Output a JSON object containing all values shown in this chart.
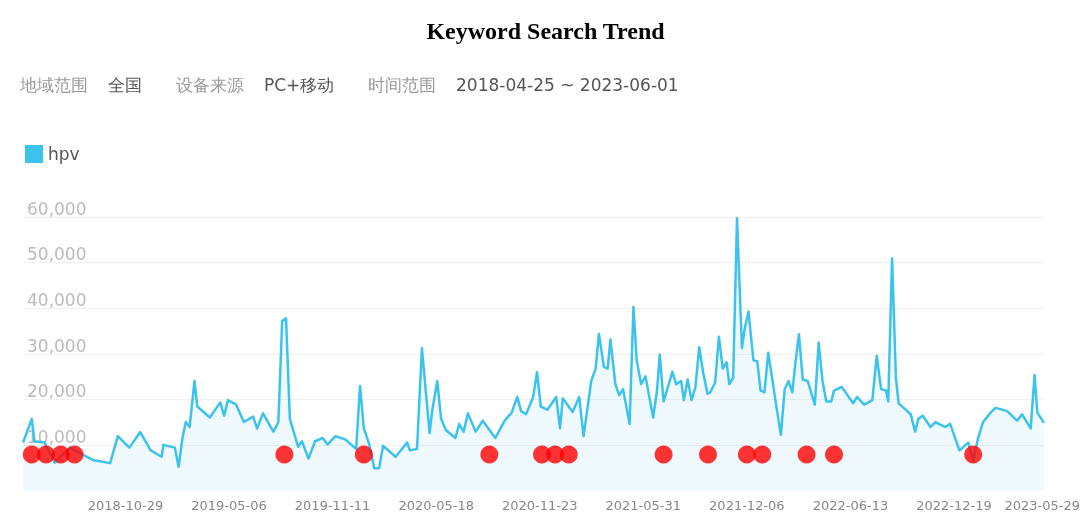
{
  "chart_data": {
    "type": "area",
    "title": "Keyword Search Trend",
    "annotations": [
      "地域范围",
      "全国",
      "设备来源",
      "PC+移动",
      "时间范围",
      "2018-04-25 ~ 2023-06-01"
    ],
    "xlim": [
      "2018-04-25",
      "2023-06-01"
    ],
    "xticks": [
      "2018-10-29",
      "2019-05-06",
      "2019-11-11",
      "2020-05-18",
      "2020-11-23",
      "2021-05-31",
      "2021-12-06",
      "2022-06-13",
      "2022-12-19",
      "2023-05-29"
    ],
    "ylim": [
      0,
      60000
    ],
    "yticks": [
      {
        "value": 10000,
        "label": "10,000"
      },
      {
        "value": 20000,
        "label": "20,000"
      },
      {
        "value": 30000,
        "label": "30,000"
      },
      {
        "value": 40000,
        "label": "40,000"
      },
      {
        "value": 50000,
        "label": "50,000"
      },
      {
        "value": 60000,
        "label": "60,000"
      }
    ],
    "grid": "y",
    "legend": "top left",
    "marker": "none",
    "line_style": "solid",
    "series": [
      {
        "name": "hpv",
        "color": "#3bc3ee",
        "x": [
          "2018-04-25",
          "2018-05-11",
          "2018-05-16",
          "2018-06-03",
          "2018-06-22",
          "2018-07-19",
          "2018-08-30",
          "2018-10-01",
          "2018-10-15",
          "2018-11-05",
          "2018-11-25",
          "2018-12-14",
          "2019-01-03",
          "2019-01-06",
          "2019-01-27",
          "2019-02-03",
          "2019-02-10",
          "2019-02-16",
          "2019-02-23",
          "2019-03-04",
          "2019-03-09",
          "2019-04-01",
          "2019-04-13",
          "2019-04-20",
          "2019-04-27",
          "2019-05-04",
          "2019-05-19",
          "2019-06-02",
          "2019-06-19",
          "2019-06-26",
          "2019-07-07",
          "2019-07-26",
          "2019-08-04",
          "2019-08-11",
          "2019-08-18",
          "2019-08-25",
          "2019-09-09",
          "2019-09-16",
          "2019-09-28",
          "2019-10-10",
          "2019-10-24",
          "2019-11-02",
          "2019-11-16",
          "2019-12-04",
          "2019-12-24",
          "2019-12-31",
          "2020-01-07",
          "2020-01-17",
          "2020-01-26",
          "2020-02-04",
          "2020-02-11",
          "2020-03-05",
          "2020-03-26",
          "2020-03-31",
          "2020-04-13",
          "2020-04-22",
          "2020-04-30",
          "2020-05-06",
          "2020-05-11",
          "2020-05-20",
          "2020-05-27",
          "2020-06-05",
          "2020-06-22",
          "2020-06-29",
          "2020-07-07",
          "2020-07-15",
          "2020-07-29",
          "2020-08-11",
          "2020-09-03",
          "2020-09-20",
          "2020-10-03",
          "2020-10-13",
          "2020-10-20",
          "2020-10-29",
          "2020-11-11",
          "2020-11-18",
          "2020-11-25",
          "2020-12-07",
          "2020-12-23",
          "2020-12-30",
          "2021-01-04",
          "2021-01-22",
          "2021-02-03",
          "2021-02-11",
          "2021-02-25",
          "2021-03-05",
          "2021-03-11",
          "2021-03-20",
          "2021-03-27",
          "2021-04-01",
          "2021-04-10",
          "2021-04-17",
          "2021-04-24",
          "2021-05-06",
          "2021-05-13",
          "2021-05-19",
          "2021-05-27",
          "2021-06-04",
          "2021-06-18",
          "2021-06-25",
          "2021-06-30",
          "2021-07-07",
          "2021-07-23",
          "2021-07-30",
          "2021-08-08",
          "2021-08-13",
          "2021-08-20",
          "2021-08-27",
          "2021-09-03",
          "2021-09-10",
          "2021-09-17",
          "2021-09-25",
          "2021-09-30",
          "2021-10-09",
          "2021-10-16",
          "2021-10-23",
          "2021-10-30",
          "2021-11-04",
          "2021-11-11",
          "2021-11-18",
          "2021-11-27",
          "2021-12-02",
          "2021-12-09",
          "2021-12-18",
          "2021-12-25",
          "2021-12-31",
          "2022-01-07",
          "2022-01-14",
          "2022-01-21",
          "2022-01-28",
          "2022-02-06",
          "2022-02-13",
          "2022-02-20",
          "2022-02-27",
          "2022-03-04",
          "2022-03-11",
          "2022-03-18",
          "2022-03-27",
          "2022-04-09",
          "2022-04-16",
          "2022-04-23",
          "2022-04-30",
          "2022-05-09",
          "2022-05-14",
          "2022-05-28",
          "2022-06-18",
          "2022-06-25",
          "2022-07-08",
          "2022-07-23",
          "2022-07-31",
          "2022-08-08",
          "2022-08-17",
          "2022-08-21",
          "2022-08-28",
          "2022-09-04",
          "2022-09-09",
          "2022-10-01",
          "2022-10-09",
          "2022-10-15",
          "2022-10-23",
          "2022-11-06",
          "2022-11-15",
          "2022-12-03",
          "2022-12-12",
          "2022-12-29",
          "2023-01-14",
          "2023-01-23",
          "2023-02-01",
          "2023-02-10",
          "2023-02-24",
          "2023-03-05",
          "2023-03-26",
          "2023-04-13",
          "2023-04-22",
          "2023-05-08",
          "2023-05-15",
          "2023-05-20",
          "2023-06-01"
        ],
        "values": [
          10600,
          15800,
          10900,
          10600,
          6200,
          9500,
          6800,
          6100,
          12000,
          9500,
          12900,
          8900,
          7500,
          10100,
          9500,
          5300,
          11600,
          15100,
          14000,
          24100,
          18500,
          16100,
          18200,
          19400,
          16500,
          19900,
          18900,
          15100,
          16300,
          13700,
          17000,
          13000,
          15100,
          37200,
          37800,
          15800,
          9700,
          10900,
          7100,
          10900,
          11600,
          10200,
          12000,
          11300,
          9200,
          23000,
          13700,
          10200,
          5000,
          5000,
          9900,
          7500,
          10600,
          8900,
          9200,
          31300,
          20600,
          12700,
          17800,
          24100,
          15800,
          13300,
          11600,
          14700,
          13000,
          17000,
          13000,
          15400,
          11600,
          15400,
          17200,
          20600,
          17500,
          16800,
          20600,
          26000,
          18500,
          17800,
          20600,
          13700,
          20300,
          17300,
          20600,
          12000,
          24100,
          26800,
          34400,
          27200,
          26800,
          33200,
          23400,
          21000,
          22300,
          14700,
          40300,
          28600,
          23400,
          25100,
          16100,
          22000,
          29900,
          19600,
          26100,
          23400,
          24100,
          19900,
          24400,
          19900,
          22700,
          31500,
          26100,
          21300,
          21600,
          23700,
          33800,
          26800,
          28200,
          23400,
          24800,
          59700,
          31300,
          35500,
          39300,
          28600,
          28400,
          22000,
          21600,
          30300,
          24800,
          19200,
          12300,
          22300,
          24100,
          21600,
          27500,
          34300,
          24400,
          24100,
          18900,
          32500,
          24100,
          19600,
          19600,
          22000,
          22800,
          19200,
          20600,
          18900,
          19900,
          29600,
          22300,
          22000,
          19600,
          50900,
          24800,
          19200,
          16800,
          13000,
          15800,
          16500,
          14000,
          15100,
          14000,
          14700,
          8900,
          10600,
          6800,
          11600,
          15100,
          17200,
          18200,
          17500,
          15400,
          16800,
          13700,
          25400,
          17200,
          14900
        ]
      },
      {
        "type": "scatter",
        "marker": "circle",
        "color": "#ff0000",
        "x": [
          "2018-05-11",
          "2018-06-06",
          "2018-07-03",
          "2018-07-28",
          "2019-08-15",
          "2020-01-07",
          "2020-08-23",
          "2020-11-27",
          "2020-12-21",
          "2021-01-15",
          "2021-07-07",
          "2021-09-26",
          "2021-12-06",
          "2022-01-03",
          "2022-03-25",
          "2022-05-14",
          "2023-01-23"
        ],
        "values": [
          8000,
          8000,
          8000,
          8000,
          8000,
          8000,
          8000,
          8000,
          8000,
          8000,
          8000,
          8000,
          8000,
          8000,
          8000,
          8000,
          8000
        ]
      }
    ]
  }
}
